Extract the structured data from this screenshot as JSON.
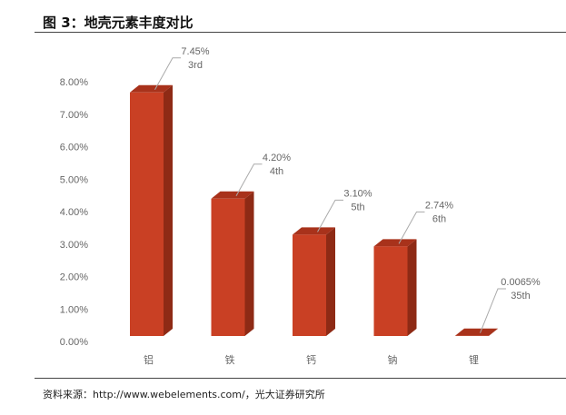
{
  "title": "图 3：地壳元素丰度对比",
  "source": "资料来源：http://www.webelements.com/，光大证券研究所",
  "colors": {
    "front": "#c94024",
    "side": "#8e2a15",
    "top": "#a8321b"
  },
  "chart_data": {
    "type": "bar",
    "title": "图 3：地壳元素丰度对比",
    "categories": [
      "铝",
      "铁",
      "钙",
      "钠",
      "锂"
    ],
    "values": [
      7.45,
      4.2,
      3.1,
      2.74,
      0.0065
    ],
    "value_labels": [
      "7.45%",
      "4.20%",
      "3.10%",
      "2.74%",
      "0.0065%"
    ],
    "rank_labels": [
      "3rd",
      "4th",
      "5th",
      "6th",
      "35th"
    ],
    "ylim": [
      0,
      8
    ],
    "yticks": [
      "0.00%",
      "1.00%",
      "2.00%",
      "3.00%",
      "4.00%",
      "5.00%",
      "6.00%",
      "7.00%",
      "8.00%"
    ],
    "xlabel": "",
    "ylabel": "",
    "grid": false
  }
}
